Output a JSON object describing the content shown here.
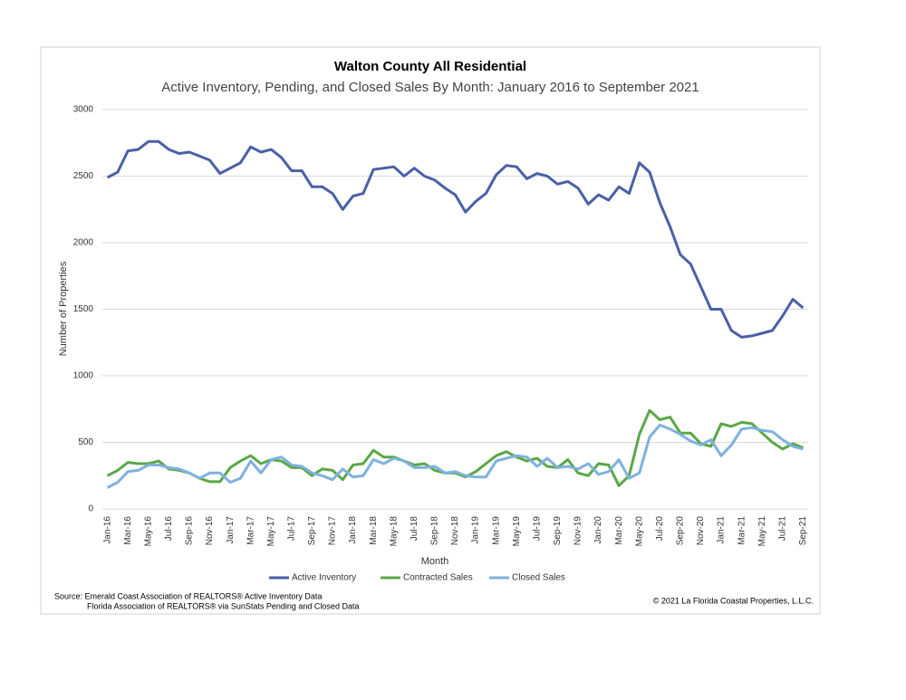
{
  "chart_data": {
    "type": "line",
    "title": "Walton County All Residential",
    "subtitle": "Active Inventory, Pending, and Closed Sales By Month: January 2016 to September 2021",
    "x_label": "Month",
    "y_label": "Number of Properties",
    "categories": [
      "Jan-16",
      null,
      "Mar-16",
      null,
      "May-16",
      null,
      "Jul-16",
      null,
      "Sep-16",
      null,
      "Nov-16",
      null,
      "Jan-17",
      null,
      "Mar-17",
      null,
      "May-17",
      null,
      "Jul-17",
      null,
      "Sep-17",
      null,
      "Nov-17",
      null,
      "Jan-18",
      null,
      "Mar-18",
      null,
      "May-18",
      null,
      "Jul-18",
      null,
      "Sep-18",
      null,
      "Nov-18",
      null,
      "Jan-19",
      null,
      "Mar-19",
      null,
      "May-19",
      null,
      "Jul-19",
      null,
      "Sep-19",
      null,
      "Nov-19",
      null,
      "Jan-20",
      null,
      "Mar-20",
      null,
      "May-20",
      null,
      "Jul-20",
      null,
      "Sep-20",
      null,
      "Nov-20",
      null,
      "Jan-21",
      null,
      "Mar-21",
      null,
      "May-21",
      null,
      "Jul-21",
      null,
      "Sep-21"
    ],
    "series": [
      {
        "name": "Active Inventory",
        "color": "#4a5fa8",
        "values": [
          2490,
          2530,
          2690,
          2700,
          2760,
          2760,
          2700,
          2670,
          2680,
          2650,
          2620,
          2520,
          2560,
          2600,
          2720,
          2680,
          2700,
          2640,
          2540,
          2540,
          2420,
          2420,
          2370,
          2250,
          2350,
          2370,
          2550,
          2560,
          2570,
          2500,
          2560,
          2500,
          2470,
          2410,
          2360,
          2230,
          2310,
          2370,
          2510,
          2580,
          2570,
          2480,
          2520,
          2500,
          2440,
          2460,
          2410,
          2290,
          2360,
          2320,
          2420,
          2370,
          2600,
          2530,
          2300,
          2120,
          1910,
          1840,
          1670,
          1500,
          1500,
          1340,
          1290,
          1300,
          1320,
          1340,
          1450,
          1575,
          1510
        ]
      },
      {
        "name": "Contracted Sales",
        "color": "#5aa845",
        "values": [
          250,
          290,
          350,
          340,
          340,
          360,
          300,
          290,
          270,
          230,
          205,
          205,
          310,
          360,
          400,
          340,
          370,
          360,
          310,
          310,
          250,
          300,
          290,
          220,
          330,
          340,
          440,
          390,
          390,
          360,
          330,
          340,
          290,
          270,
          270,
          240,
          280,
          340,
          400,
          430,
          390,
          360,
          380,
          320,
          310,
          370,
          270,
          250,
          340,
          330,
          175,
          250,
          560,
          740,
          670,
          690,
          570,
          570,
          490,
          470,
          640,
          620,
          650,
          640,
          570,
          500,
          450,
          490,
          460
        ]
      },
      {
        "name": "Closed Sales",
        "color": "#7eb1e0",
        "values": [
          160,
          200,
          280,
          290,
          330,
          330,
          310,
          300,
          270,
          230,
          270,
          270,
          200,
          230,
          360,
          270,
          370,
          390,
          330,
          320,
          270,
          250,
          220,
          300,
          240,
          250,
          370,
          340,
          380,
          360,
          310,
          310,
          320,
          270,
          280,
          250,
          240,
          240,
          360,
          380,
          400,
          390,
          320,
          380,
          310,
          320,
          300,
          340,
          260,
          280,
          370,
          230,
          270,
          540,
          630,
          600,
          560,
          510,
          480,
          520,
          400,
          480,
          600,
          610,
          590,
          580,
          520,
          470,
          450
        ]
      }
    ],
    "ylim": [
      0,
      3000
    ],
    "yticks": [
      0,
      500,
      1000,
      1500,
      2000,
      2500,
      3000
    ],
    "grid": true,
    "legend": "bottom",
    "source": [
      "Source:  Emerald Coast Association of REALTORS®  Active Inventory Data",
      "Florida Association of REALTORS®  via SunStats Pending and Closed Data"
    ],
    "copyright": "© 2021 La Florida Coastal Properties, L.L.C."
  }
}
